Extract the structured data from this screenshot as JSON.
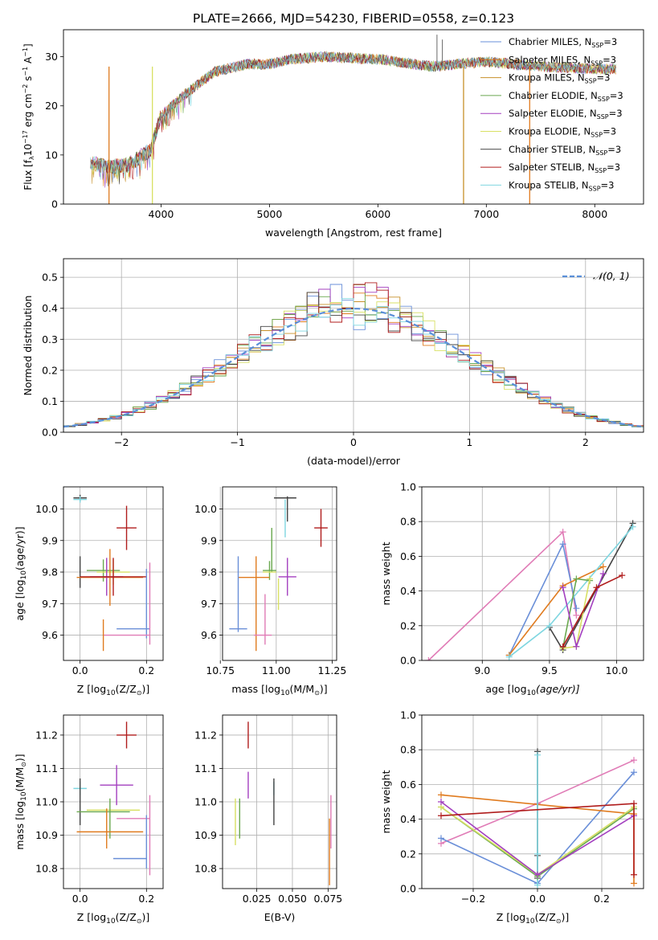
{
  "title": "PLATE=2666, MJD=54230, FIBERID=0558, z=0.123",
  "colors": {
    "chabrier_miles": "#6a8fd8",
    "salpeter_miles": "#e07b1f",
    "kroupa_miles": "#c7902a",
    "chabrier_elodie": "#6aa84f",
    "salpeter_elodie": "#a33fbf",
    "kroupa_elodie": "#d8e063",
    "chabrier_stelib": "#444444",
    "salpeter_stelib": "#b01c1c",
    "kroupa_stelib": "#7fd6e0",
    "pink": "#e07bb6",
    "normal": "#5b8fd8"
  },
  "chart_data": [
    {
      "id": "spectrum",
      "type": "line",
      "xlabel": "wavelength [Angstrom, rest frame]",
      "ylabel": "Flux [f",
      "ylabel_rest": "10",
      "ylabel_exp1": "−17",
      "ylabel_mid": " erg cm",
      "ylabel_exp2": "−2",
      "ylabel_mid2": " s",
      "ylabel_exp3": "−1",
      "ylabel_mid3": " A",
      "ylabel_exp4": "−1",
      "ylabel_end": "]",
      "xlim": [
        3100,
        8450
      ],
      "ylim": [
        0,
        35.5
      ],
      "xticks": [
        "4000",
        "5000",
        "6000",
        "7000",
        "8000"
      ],
      "yticks": [
        "0",
        "10",
        "20",
        "30"
      ],
      "legend": [
        {
          "label": "Chabrier MILES, N",
          "sub": "SSP",
          "suffix": "=3",
          "color": "#6a8fd8"
        },
        {
          "label": "Salpeter MILES, N",
          "sub": "SSP",
          "suffix": "=3",
          "color": "#e07b1f"
        },
        {
          "label": "Kroupa MILES, N",
          "sub": "SSP",
          "suffix": "=3",
          "color": "#c7902a"
        },
        {
          "label": "Chabrier ELODIE, N",
          "sub": "SSP",
          "suffix": "=3",
          "color": "#6aa84f"
        },
        {
          "label": "Salpeter ELODIE, N",
          "sub": "SSP",
          "suffix": "=3",
          "color": "#a33fbf"
        },
        {
          "label": "Kroupa ELODIE, N",
          "sub": "SSP",
          "suffix": "=3",
          "color": "#d8e063"
        },
        {
          "label": "Chabrier STELIB, N",
          "sub": "SSP",
          "suffix": "=3",
          "color": "#444444"
        },
        {
          "label": "Salpeter STELIB, N",
          "sub": "SSP",
          "suffix": "=3",
          "color": "#b01c1c"
        },
        {
          "label": "Kroupa STELIB, N",
          "sub": "SSP",
          "suffix": "=3",
          "color": "#7fd6e0"
        }
      ],
      "continuum_x": [
        3350,
        3500,
        3700,
        3900,
        4000,
        4200,
        4500,
        4800,
        5000,
        5200,
        5500,
        6000,
        6500,
        7000,
        7500,
        8000,
        8200
      ],
      "continuum_y": [
        8.5,
        7.5,
        8,
        11,
        18,
        22,
        27,
        28.5,
        28.5,
        29.5,
        30,
        29.5,
        28,
        29,
        28,
        27.5,
        27.5
      ],
      "dropouts": [
        {
          "x": 3520,
          "color": "#e07b1f"
        },
        {
          "x": 3920,
          "color": "#d8e063"
        },
        {
          "x": 6790,
          "color": "#c7902a"
        },
        {
          "x": 7400,
          "color": "#e07b1f"
        }
      ]
    },
    {
      "id": "residuals",
      "type": "histogram",
      "xlabel": "(data-model)/error",
      "ylabel": "Normed distribution",
      "xlim": [
        -2.5,
        2.5
      ],
      "ylim": [
        0,
        0.56
      ],
      "xticks": [
        "−2",
        "−1",
        "0",
        "1",
        "2"
      ],
      "yticks": [
        "0.0",
        "0.1",
        "0.2",
        "0.3",
        "0.4",
        "0.5"
      ],
      "legend": "𝒩(0, 1)",
      "bin_width": 0.1
    },
    {
      "id": "age_vs_Z",
      "type": "errorbar",
      "xlabel": "Z [log",
      "xlabel_sub": "10",
      "xlabel_rest": "(Z/Z",
      "xlabel_end": ")]",
      "ylabel": "age  [log",
      "ylabel_sub": "10",
      "ylabel_rest": "(age/yr)]",
      "xlim": [
        -0.05,
        0.25
      ],
      "ylim": [
        9.52,
        10.07
      ],
      "xticks": [
        "0.0",
        "0.2"
      ],
      "yticks": [
        "9.6",
        "9.7",
        "9.8",
        "9.9",
        "10.0"
      ],
      "points": [
        {
          "x": 0.0,
          "xerr": 0.02,
          "y": 10.035,
          "yerr": 0.01,
          "color": "#444444"
        },
        {
          "x": 0.0,
          "xerr": 0.02,
          "y": 10.03,
          "yerr": 0.01,
          "color": "#7fd6e0"
        },
        {
          "x": 0.14,
          "xerr": 0.03,
          "y": 9.94,
          "yerr": 0.07,
          "color": "#b01c1c"
        },
        {
          "x": 0.0,
          "xerr": 0.0,
          "y": 9.8,
          "yerr": 0.05,
          "color": "#444444"
        },
        {
          "x": 0.07,
          "xerr": 0.05,
          "y": 9.805,
          "yerr": 0.035,
          "color": "#6aa84f"
        },
        {
          "x": 0.1,
          "xerr": 0.05,
          "y": 9.8,
          "yerr": 0.04,
          "color": "#d8e063"
        },
        {
          "x": 0.09,
          "xerr": 0.1,
          "y": 9.783,
          "yerr": 0.09,
          "color": "#e07b1f"
        },
        {
          "x": 0.08,
          "xerr": 0.05,
          "y": 9.785,
          "yerr": 0.06,
          "color": "#a33fbf"
        },
        {
          "x": 0.1,
          "xerr": 0.1,
          "y": 9.785,
          "yerr": 0.06,
          "color": "#b01c1c"
        },
        {
          "x": 0.16,
          "xerr": 0.05,
          "y": 9.62,
          "yerr": 0.0,
          "color": "#6a8fd8"
        },
        {
          "x": 0.2,
          "xerr": 0.0,
          "y": 9.7,
          "yerr": 0.11,
          "color": "#6a8fd8"
        },
        {
          "x": 0.21,
          "xerr": 0.0,
          "y": 9.7,
          "yerr": 0.13,
          "color": "#e07bb6"
        },
        {
          "x": 0.14,
          "xerr": 0.07,
          "y": 9.6,
          "yerr": 0.0,
          "color": "#e07bb6"
        },
        {
          "x": 0.07,
          "xerr": 0.0,
          "y": 9.6,
          "yerr": 0.05,
          "color": "#e07b1f"
        }
      ]
    },
    {
      "id": "age_vs_mass",
      "type": "errorbar",
      "xlabel": "mass [log",
      "xlabel_sub": "10",
      "xlabel_rest": "(M/M",
      "xlabel_end": ")]",
      "xlim": [
        10.76,
        11.27
      ],
      "ylim": [
        9.52,
        10.07
      ],
      "xticks": [
        "10.75",
        "11.00",
        "11.25"
      ],
      "yticks": [
        "9.6",
        "9.7",
        "9.8",
        "9.9",
        "10.0"
      ],
      "points": [
        {
          "x": 11.04,
          "xerr": 0.05,
          "y": 10.035,
          "yerr": 0.0,
          "color": "#444444"
        },
        {
          "x": 11.05,
          "xerr": 0.0,
          "y": 10.0,
          "yerr": 0.04,
          "color": "#444444"
        },
        {
          "x": 11.04,
          "xerr": 0.0,
          "y": 9.97,
          "yerr": 0.06,
          "color": "#7fd6e0"
        },
        {
          "x": 11.2,
          "xerr": 0.03,
          "y": 9.94,
          "yerr": 0.06,
          "color": "#b01c1c"
        },
        {
          "x": 10.98,
          "xerr": 0.0,
          "y": 9.87,
          "yerr": 0.07,
          "color": "#6aa84f"
        },
        {
          "x": 10.97,
          "xerr": 0.03,
          "y": 9.805,
          "yerr": 0.03,
          "color": "#6aa84f"
        },
        {
          "x": 10.97,
          "xerr": 0.03,
          "y": 9.8,
          "yerr": 0.0,
          "color": "#d8e063"
        },
        {
          "x": 10.9,
          "xerr": 0.07,
          "y": 9.783,
          "yerr": 0.0,
          "color": "#e07b1f"
        },
        {
          "x": 10.91,
          "xerr": 0.0,
          "y": 9.7,
          "yerr": 0.15,
          "color": "#e07b1f"
        },
        {
          "x": 11.05,
          "xerr": 0.04,
          "y": 9.785,
          "yerr": 0.06,
          "color": "#a33fbf"
        },
        {
          "x": 11.01,
          "xerr": 0.0,
          "y": 9.73,
          "yerr": 0.05,
          "color": "#d8e063"
        },
        {
          "x": 10.83,
          "xerr": 0.04,
          "y": 9.62,
          "yerr": 0.0,
          "color": "#6a8fd8"
        },
        {
          "x": 10.83,
          "xerr": 0.0,
          "y": 9.73,
          "yerr": 0.12,
          "color": "#6a8fd8"
        },
        {
          "x": 10.94,
          "xerr": 0.04,
          "y": 9.6,
          "yerr": 0.0,
          "color": "#e07bb6"
        },
        {
          "x": 10.95,
          "xerr": 0.0,
          "y": 9.65,
          "yerr": 0.08,
          "color": "#e07bb6"
        }
      ]
    },
    {
      "id": "weight_vs_age",
      "type": "line",
      "xlabel": "age  [log",
      "xlabel_sub": "10",
      "xlabel_rest": "(age/yr)]",
      "ylabel": "mass weight",
      "xlim": [
        8.55,
        10.2
      ],
      "ylim": [
        0,
        1.0
      ],
      "xticks": [
        "9.0",
        "9.5",
        "10.0"
      ],
      "yticks": [
        "0.0",
        "0.2",
        "0.4",
        "0.6",
        "0.8",
        "1.0"
      ],
      "series": [
        {
          "color": "#e07bb6",
          "x": [
            8.6,
            9.6,
            9.7
          ],
          "y": [
            0.0,
            0.74,
            0.26
          ]
        },
        {
          "color": "#6a8fd8",
          "x": [
            9.2,
            9.6,
            9.7
          ],
          "y": [
            0.03,
            0.67,
            0.3
          ]
        },
        {
          "color": "#e07b1f",
          "x": [
            9.2,
            9.6,
            9.9
          ],
          "y": [
            0.03,
            0.43,
            0.54
          ]
        },
        {
          "color": "#444444",
          "x": [
            9.5,
            9.6,
            10.12
          ],
          "y": [
            0.19,
            0.06,
            0.79
          ]
        },
        {
          "color": "#7fd6e0",
          "x": [
            9.2,
            9.5,
            10.12
          ],
          "y": [
            0.02,
            0.2,
            0.77
          ]
        },
        {
          "color": "#6aa84f",
          "x": [
            9.6,
            9.7,
            9.8
          ],
          "y": [
            0.07,
            0.47,
            0.46
          ]
        },
        {
          "color": "#d8e063",
          "x": [
            9.6,
            9.7,
            9.8
          ],
          "y": [
            0.07,
            0.08,
            0.47
          ]
        },
        {
          "color": "#a33fbf",
          "x": [
            9.6,
            9.7,
            9.9
          ],
          "y": [
            0.42,
            0.08,
            0.5
          ]
        },
        {
          "color": "#b01c1c",
          "x": [
            9.6,
            9.85,
            10.04
          ],
          "y": [
            0.08,
            0.42,
            0.49
          ]
        }
      ]
    },
    {
      "id": "mass_vs_Z",
      "type": "errorbar",
      "xlabel": "Z [log",
      "xlabel_sub": "10",
      "xlabel_rest": "(Z/Z",
      "xlabel_end": ")]",
      "ylabel": "mass [log",
      "ylabel_sub": "10",
      "ylabel_rest": "(M/M",
      "ylabel_end": ")]",
      "xlim": [
        -0.05,
        0.25
      ],
      "ylim": [
        10.74,
        11.26
      ],
      "xticks": [
        "0.0",
        "0.2"
      ],
      "yticks": [
        "10.8",
        "10.9",
        "11.0",
        "11.1",
        "11.2"
      ],
      "points": [
        {
          "x": 0.14,
          "xerr": 0.03,
          "y": 11.2,
          "yerr": 0.04,
          "color": "#b01c1c"
        },
        {
          "x": 0.11,
          "xerr": 0.05,
          "y": 11.05,
          "yerr": 0.06,
          "color": "#a33fbf"
        },
        {
          "x": 0.0,
          "xerr": 0.02,
          "y": 11.04,
          "yerr": 0.02,
          "color": "#7fd6e0"
        },
        {
          "x": 0.0,
          "xerr": 0.0,
          "y": 11.0,
          "yerr": 0.07,
          "color": "#444444"
        },
        {
          "x": 0.07,
          "xerr": 0.08,
          "y": 10.97,
          "yerr": 0.0,
          "color": "#6aa84f"
        },
        {
          "x": 0.1,
          "xerr": 0.08,
          "y": 10.975,
          "yerr": 0.0,
          "color": "#d8e063"
        },
        {
          "x": 0.09,
          "xerr": 0.0,
          "y": 10.95,
          "yerr": 0.06,
          "color": "#6aa84f"
        },
        {
          "x": 0.16,
          "xerr": 0.05,
          "y": 10.95,
          "yerr": 0.0,
          "color": "#e07bb6"
        },
        {
          "x": 0.21,
          "xerr": 0.0,
          "y": 10.9,
          "yerr": 0.12,
          "color": "#e07bb6"
        },
        {
          "x": 0.09,
          "xerr": 0.1,
          "y": 10.91,
          "yerr": 0.0,
          "color": "#e07b1f"
        },
        {
          "x": 0.08,
          "xerr": 0.0,
          "y": 10.92,
          "yerr": 0.06,
          "color": "#e07b1f"
        },
        {
          "x": 0.15,
          "xerr": 0.05,
          "y": 10.83,
          "yerr": 0.0,
          "color": "#6a8fd8"
        },
        {
          "x": 0.2,
          "xerr": 0.0,
          "y": 10.88,
          "yerr": 0.08,
          "color": "#6a8fd8"
        }
      ]
    },
    {
      "id": "mass_vs_ebv",
      "type": "errorbar",
      "xlabel": "E(B-V)",
      "xlim": [
        0.001,
        0.081
      ],
      "ylim": [
        10.74,
        11.26
      ],
      "xticks": [
        "0.025",
        "0.050",
        "0.075"
      ],
      "yticks": [
        "10.8",
        "10.9",
        "11.0",
        "11.1",
        "11.2"
      ],
      "points": [
        {
          "x": 0.019,
          "xerr": 0.0,
          "y": 11.2,
          "yerr": 0.04,
          "color": "#b01c1c"
        },
        {
          "x": 0.019,
          "xerr": 0.0,
          "y": 11.05,
          "yerr": 0.04,
          "color": "#a33fbf"
        },
        {
          "x": 0.037,
          "xerr": 0.0,
          "y": 11.04,
          "yerr": 0.02,
          "color": "#7fd6e0"
        },
        {
          "x": 0.037,
          "xerr": 0.0,
          "y": 11.0,
          "yerr": 0.07,
          "color": "#444444"
        },
        {
          "x": 0.01,
          "xerr": 0.0,
          "y": 10.94,
          "yerr": 0.07,
          "color": "#d8e063"
        },
        {
          "x": 0.013,
          "xerr": 0.0,
          "y": 10.95,
          "yerr": 0.06,
          "color": "#6aa84f"
        },
        {
          "x": 0.077,
          "xerr": 0.0,
          "y": 10.94,
          "yerr": 0.08,
          "color": "#e07bb6"
        },
        {
          "x": 0.076,
          "xerr": 0.0,
          "y": 10.85,
          "yerr": 0.1,
          "color": "#e07b1f"
        }
      ]
    },
    {
      "id": "weight_vs_Z",
      "type": "line",
      "xlabel": "Z [log",
      "xlabel_sub": "10",
      "xlabel_rest": "(Z/Z",
      "xlabel_end": ")]",
      "ylabel": "mass weight",
      "xlim": [
        -0.36,
        0.33
      ],
      "ylim": [
        0,
        1.0
      ],
      "xticks": [
        "−0.2",
        "0.0",
        "0.2"
      ],
      "yticks": [
        "0.0",
        "0.2",
        "0.4",
        "0.6",
        "0.8",
        "1.0"
      ],
      "series": [
        {
          "color": "#e07bb6",
          "x": [
            -0.3,
            0.0,
            0.3
          ],
          "y": [
            0.26,
            0.49,
            0.74
          ]
        },
        {
          "color": "#6a8fd8",
          "x": [
            -0.3,
            0.0,
            0.3
          ],
          "y": [
            0.29,
            0.03,
            0.67
          ]
        },
        {
          "color": "#e07b1f",
          "x": [
            -0.3,
            0.3,
            0.3
          ],
          "y": [
            0.54,
            0.43,
            0.03
          ]
        },
        {
          "color": "#444444",
          "x": [
            0.0,
            0.0,
            0.0
          ],
          "y": [
            0.79,
            0.19,
            0.06
          ]
        },
        {
          "color": "#7fd6e0",
          "x": [
            0.0,
            0.0,
            0.0
          ],
          "y": [
            0.77,
            0.2,
            0.02
          ]
        },
        {
          "color": "#6aa84f",
          "x": [
            -0.3,
            0.0,
            0.3
          ],
          "y": [
            0.47,
            0.07,
            0.46
          ]
        },
        {
          "color": "#d8e063",
          "x": [
            -0.3,
            0.0,
            0.3
          ],
          "y": [
            0.47,
            0.08,
            0.47
          ]
        },
        {
          "color": "#a33fbf",
          "x": [
            -0.3,
            0.0,
            0.3
          ],
          "y": [
            0.5,
            0.08,
            0.42
          ]
        },
        {
          "color": "#b01c1c",
          "x": [
            -0.3,
            0.3,
            0.3
          ],
          "y": [
            0.42,
            0.49,
            0.08
          ]
        }
      ]
    }
  ]
}
